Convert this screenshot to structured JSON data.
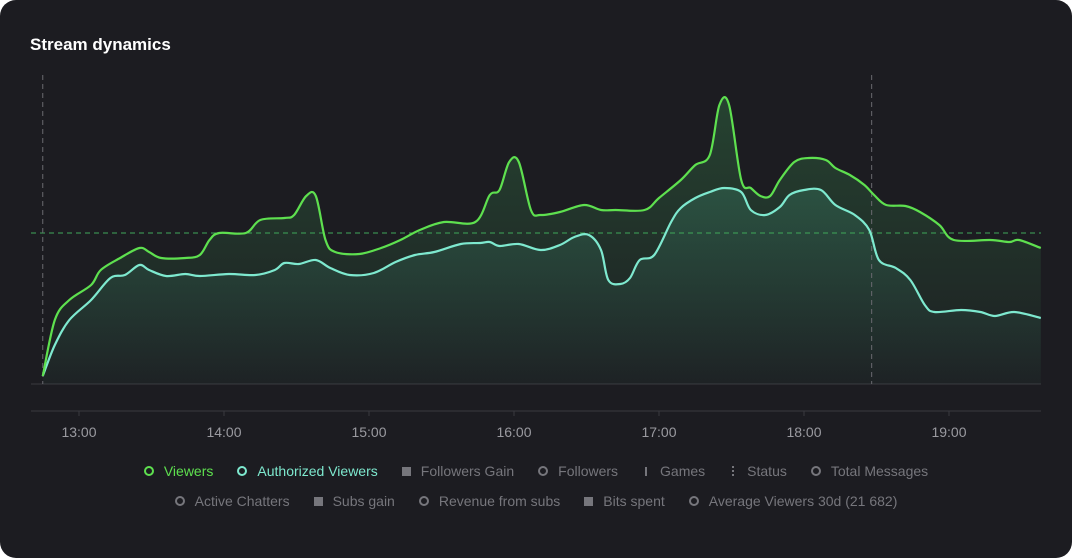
{
  "title": "Stream dynamics",
  "colors": {
    "viewers": "#5ee04f",
    "authorized": "#7ee9cf",
    "inactive": "#77777d",
    "background": "#1c1c21"
  },
  "chart_data": {
    "type": "line",
    "x_unit": "minutes since 12:00",
    "xlim": [
      40,
      458
    ],
    "ylim": [
      0,
      290
    ],
    "x_ticks": [
      {
        "value": 60,
        "label": "13:00"
      },
      {
        "value": 120,
        "label": "14:00"
      },
      {
        "value": 180,
        "label": "15:00"
      },
      {
        "value": 240,
        "label": "16:00"
      },
      {
        "value": 300,
        "label": "17:00"
      },
      {
        "value": 360,
        "label": "18:00"
      },
      {
        "value": 420,
        "label": "19:00"
      }
    ],
    "reference_line_y": 151,
    "vertical_markers_x": [
      45,
      388
    ],
    "series": [
      {
        "name": "Viewers",
        "points": [
          [
            45,
            8
          ],
          [
            50,
            64
          ],
          [
            56,
            84
          ],
          [
            65,
            99
          ],
          [
            69,
            114
          ],
          [
            77,
            126
          ],
          [
            85,
            136
          ],
          [
            89,
            132
          ],
          [
            94,
            126
          ],
          [
            104,
            126
          ],
          [
            110,
            129
          ],
          [
            114,
            144
          ],
          [
            118,
            151
          ],
          [
            129,
            151
          ],
          [
            135,
            164
          ],
          [
            145,
            166
          ],
          [
            149,
            169
          ],
          [
            154,
            188
          ],
          [
            158,
            188
          ],
          [
            162,
            144
          ],
          [
            166,
            132
          ],
          [
            176,
            130
          ],
          [
            185,
            136
          ],
          [
            193,
            144
          ],
          [
            201,
            154
          ],
          [
            211,
            162
          ],
          [
            224,
            162
          ],
          [
            230,
            189
          ],
          [
            234,
            194
          ],
          [
            238,
            222
          ],
          [
            242,
            222
          ],
          [
            247,
            174
          ],
          [
            251,
            169
          ],
          [
            259,
            172
          ],
          [
            269,
            179
          ],
          [
            276,
            174
          ],
          [
            282,
            174
          ],
          [
            294,
            174
          ],
          [
            300,
            186
          ],
          [
            309,
            204
          ],
          [
            315,
            219
          ],
          [
            321,
            229
          ],
          [
            325,
            279
          ],
          [
            329,
            279
          ],
          [
            334,
            204
          ],
          [
            338,
            196
          ],
          [
            342,
            188
          ],
          [
            346,
            188
          ],
          [
            350,
            204
          ],
          [
            356,
            222
          ],
          [
            362,
            226
          ],
          [
            369,
            224
          ],
          [
            373,
            216
          ],
          [
            379,
            209
          ],
          [
            385,
            199
          ],
          [
            389,
            189
          ],
          [
            394,
            179
          ],
          [
            402,
            178
          ],
          [
            408,
            172
          ],
          [
            416,
            159
          ],
          [
            422,
            144
          ],
          [
            437,
            144
          ],
          [
            445,
            142
          ],
          [
            449,
            144
          ],
          [
            458,
            136
          ]
        ]
      },
      {
        "name": "Authorized Viewers",
        "points": [
          [
            45,
            8
          ],
          [
            50,
            39
          ],
          [
            56,
            64
          ],
          [
            65,
            84
          ],
          [
            73,
            106
          ],
          [
            79,
            109
          ],
          [
            85,
            119
          ],
          [
            89,
            114
          ],
          [
            96,
            108
          ],
          [
            104,
            110
          ],
          [
            110,
            108
          ],
          [
            122,
            110
          ],
          [
            133,
            109
          ],
          [
            141,
            114
          ],
          [
            145,
            121
          ],
          [
            151,
            120
          ],
          [
            158,
            124
          ],
          [
            164,
            116
          ],
          [
            172,
            109
          ],
          [
            182,
            111
          ],
          [
            191,
            122
          ],
          [
            199,
            129
          ],
          [
            207,
            132
          ],
          [
            218,
            140
          ],
          [
            226,
            141
          ],
          [
            230,
            142
          ],
          [
            234,
            138
          ],
          [
            242,
            140
          ],
          [
            251,
            134
          ],
          [
            259,
            139
          ],
          [
            265,
            147
          ],
          [
            271,
            149
          ],
          [
            276,
            134
          ],
          [
            279,
            104
          ],
          [
            284,
            100
          ],
          [
            288,
            106
          ],
          [
            292,
            124
          ],
          [
            298,
            129
          ],
          [
            305,
            162
          ],
          [
            309,
            176
          ],
          [
            315,
            186
          ],
          [
            321,
            192
          ],
          [
            327,
            196
          ],
          [
            334,
            192
          ],
          [
            338,
            174
          ],
          [
            344,
            169
          ],
          [
            350,
            177
          ],
          [
            354,
            189
          ],
          [
            360,
            194
          ],
          [
            367,
            194
          ],
          [
            373,
            179
          ],
          [
            381,
            169
          ],
          [
            387,
            154
          ],
          [
            391,
            124
          ],
          [
            398,
            116
          ],
          [
            404,
            104
          ],
          [
            410,
            79
          ],
          [
            414,
            72
          ],
          [
            425,
            74
          ],
          [
            433,
            72
          ],
          [
            439,
            68
          ],
          [
            447,
            72
          ],
          [
            458,
            66
          ]
        ]
      }
    ]
  },
  "legend": {
    "row1": [
      {
        "label": "Viewers",
        "icon": "ring",
        "active": "viewers"
      },
      {
        "label": "Authorized Viewers",
        "icon": "ring",
        "active": "authorized"
      },
      {
        "label": "Followers Gain",
        "icon": "square"
      },
      {
        "label": "Followers",
        "icon": "ring"
      },
      {
        "label": "Games",
        "icon": "bar"
      },
      {
        "label": "Status",
        "icon": "dots"
      },
      {
        "label": "Total Messages",
        "icon": "ring"
      }
    ],
    "row2": [
      {
        "label": "Active Chatters",
        "icon": "ring"
      },
      {
        "label": "Subs gain",
        "icon": "square"
      },
      {
        "label": "Revenue from subs",
        "icon": "ring"
      },
      {
        "label": "Bits spent",
        "icon": "square"
      },
      {
        "label": "Average Viewers 30d (21 682)",
        "icon": "ring"
      }
    ]
  }
}
